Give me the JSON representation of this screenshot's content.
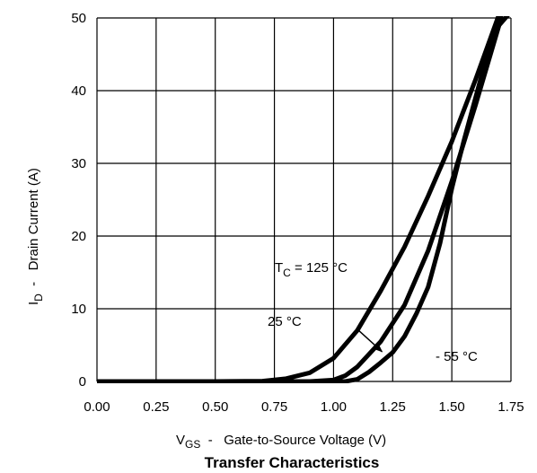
{
  "chart_data": {
    "type": "line",
    "title": "Transfer Characteristics",
    "xlabel": {
      "prefix": "V",
      "sub": "GS",
      "rest": "  -   Gate-to-Source Voltage (V)"
    },
    "ylabel": {
      "prefix": "I",
      "sub": "D",
      "rest": "  -   Drain Current (A)"
    },
    "xlim": [
      0,
      1.75
    ],
    "ylim": [
      0,
      50
    ],
    "x_ticks": [
      0.0,
      0.25,
      0.5,
      0.75,
      1.0,
      1.25,
      1.5,
      1.75
    ],
    "x_tick_labels": [
      "0.00",
      "0.25",
      "0.50",
      "0.75",
      "1.00",
      "1.25",
      "1.50",
      "1.75"
    ],
    "y_ticks": [
      0,
      10,
      20,
      30,
      40,
      50
    ],
    "y_tick_labels": [
      "0",
      "10",
      "20",
      "30",
      "40",
      "50"
    ],
    "grid": true,
    "series": [
      {
        "key": "tc125",
        "x": [
          0.0,
          0.5,
          0.7,
          0.8,
          0.9,
          1.0,
          1.1,
          1.2,
          1.3,
          1.4,
          1.5,
          1.6,
          1.7
        ],
        "y": [
          0.0,
          0.0,
          0.05,
          0.4,
          1.2,
          3.2,
          7.0,
          12.5,
          18.5,
          25.5,
          33.0,
          41.5,
          50.5
        ]
      },
      {
        "key": "tc25",
        "x": [
          0.0,
          0.8,
          0.9,
          1.0,
          1.05,
          1.1,
          1.2,
          1.3,
          1.4,
          1.5,
          1.6,
          1.7,
          1.71
        ],
        "y": [
          0.0,
          0.0,
          0.0,
          0.2,
          0.8,
          2.0,
          5.5,
          10.5,
          18.0,
          27.5,
          38.0,
          49.0,
          50.5
        ]
      },
      {
        "key": "tcm55",
        "x": [
          0.0,
          1.05,
          1.1,
          1.15,
          1.2,
          1.25,
          1.3,
          1.35,
          1.4,
          1.45,
          1.5,
          1.55,
          1.6,
          1.65,
          1.7,
          1.74
        ],
        "y": [
          0.0,
          0.0,
          0.3,
          1.3,
          2.6,
          4.0,
          6.2,
          9.3,
          13.0,
          19.0,
          26.5,
          33.0,
          39.0,
          45.0,
          49.0,
          50.5
        ]
      }
    ],
    "annotations": {
      "tc125": {
        "prefix": "T",
        "sub": "C",
        "rest": " = 125 °C"
      },
      "tc25": "25 °C",
      "tcm55": "- 55 °C"
    },
    "arrow": {
      "from_x": 1.1,
      "from_y": 7.2,
      "to_x": 1.205,
      "to_y": 4.1
    }
  }
}
